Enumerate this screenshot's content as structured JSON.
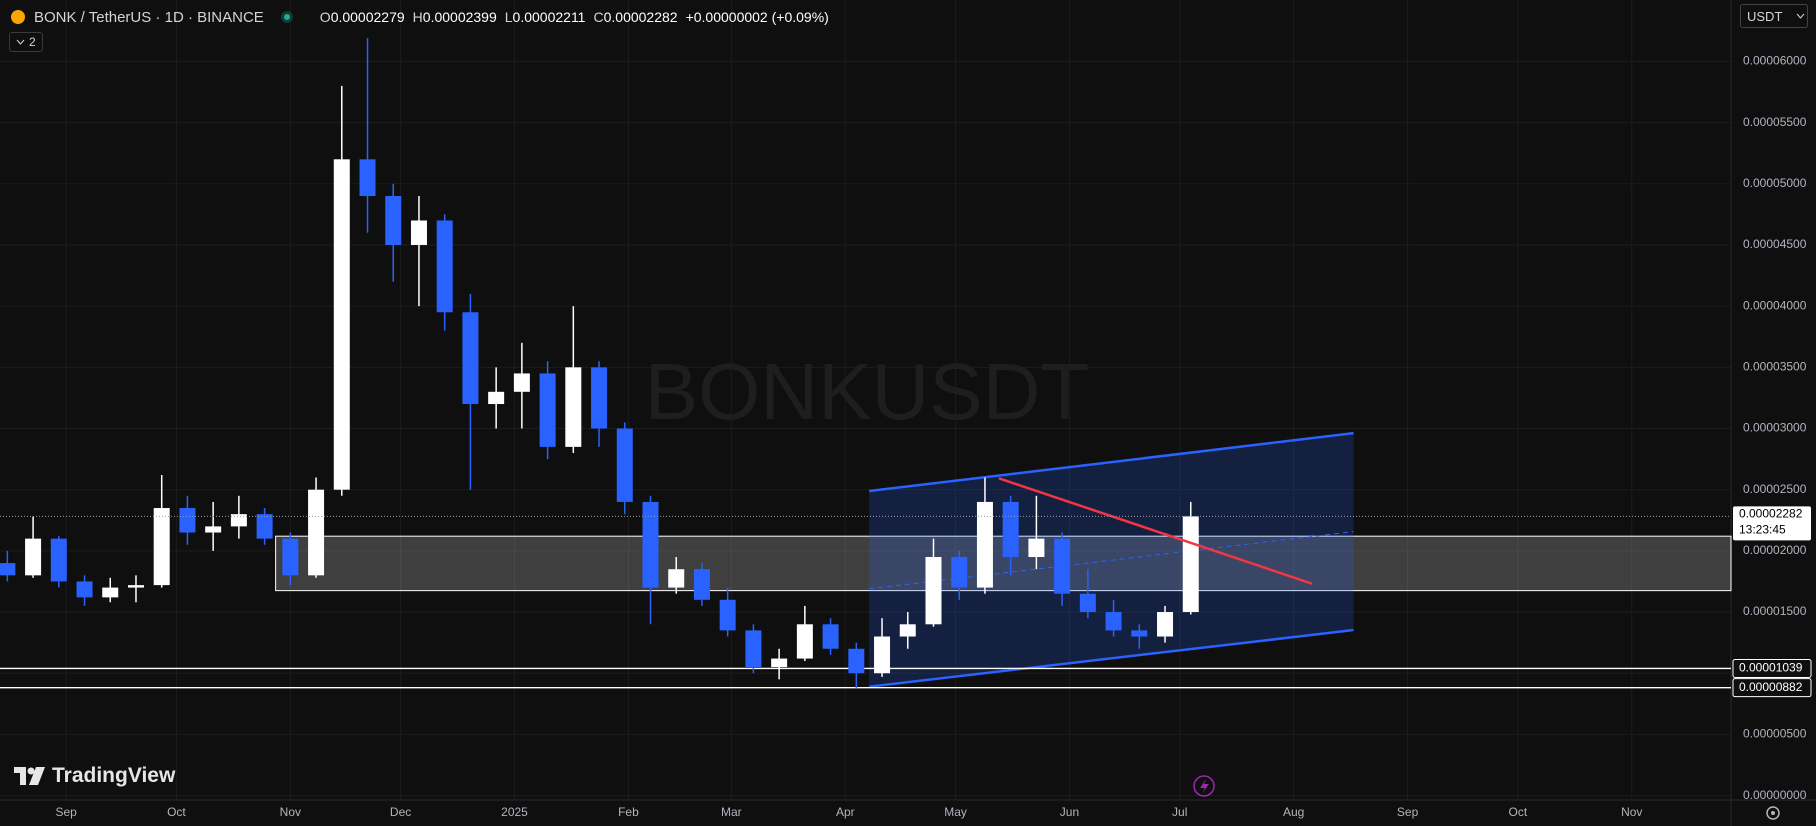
{
  "chart_data": {
    "type": "candlestick",
    "title": "BONK / TetherUS · 1D · BINANCE",
    "ohlc": [
      {
        "label": "O",
        "value": "0.00002279"
      },
      {
        "label": "H",
        "value": "0.00002399"
      },
      {
        "label": "L",
        "value": "0.00002211"
      },
      {
        "label": "C",
        "value": "0.00002282"
      }
    ],
    "change": "+0.00000002 (+0.09%)",
    "indicator_count": "2",
    "currency": "USDT",
    "watermark": "BONKUSDT",
    "brand": "TradingView",
    "up_color": "#ffffff",
    "down_color": "#2962ff",
    "grid": true,
    "xlim": [
      -18,
      453
    ],
    "ylim": [
      -3.6e-07,
      6.502e-05
    ],
    "xticks": [
      {
        "value": 0,
        "label": "Sep"
      },
      {
        "value": 30,
        "label": "Oct"
      },
      {
        "value": 61,
        "label": "Nov"
      },
      {
        "value": 91,
        "label": "Dec"
      },
      {
        "value": 122,
        "label": "2025"
      },
      {
        "value": 153,
        "label": "Feb"
      },
      {
        "value": 181,
        "label": "Mar"
      },
      {
        "value": 212,
        "label": "Apr"
      },
      {
        "value": 242,
        "label": "May"
      },
      {
        "value": 273,
        "label": "Jun"
      },
      {
        "value": 303,
        "label": "Jul"
      },
      {
        "value": 334,
        "label": "Aug"
      },
      {
        "value": 365,
        "label": "Sep"
      },
      {
        "value": 395,
        "label": "Oct"
      },
      {
        "value": 426,
        "label": "Nov"
      }
    ],
    "yticks": [
      {
        "value": 0,
        "label": "0.00000000"
      },
      {
        "value": 5e-06,
        "label": "0.00000500"
      },
      {
        "value": 1e-05,
        "label": "0.00001000"
      },
      {
        "value": 1.5e-05,
        "label": "0.00001500"
      },
      {
        "value": 2e-05,
        "label": "0.00002000"
      },
      {
        "value": 2.5e-05,
        "label": "0.00002500"
      },
      {
        "value": 3e-05,
        "label": "0.00003000"
      },
      {
        "value": 3.5e-05,
        "label": "0.00003500"
      },
      {
        "value": 4e-05,
        "label": "0.00004000"
      },
      {
        "value": 4.5e-05,
        "label": "0.00004500"
      },
      {
        "value": 5e-05,
        "label": "0.00005000"
      },
      {
        "value": 5.5e-05,
        "label": "0.00005500"
      },
      {
        "value": 6e-05,
        "label": "0.00006000"
      }
    ],
    "candles": [
      {
        "x": -16,
        "open": 1.9e-05,
        "high": 2e-05,
        "low": 1.75e-05,
        "close": 1.8e-05
      },
      {
        "x": -9,
        "open": 1.8e-05,
        "high": 2.28e-05,
        "low": 1.78e-05,
        "close": 2.1e-05
      },
      {
        "x": -2,
        "open": 2.1e-05,
        "high": 2.12e-05,
        "low": 1.7e-05,
        "close": 1.75e-05
      },
      {
        "x": 5,
        "open": 1.75e-05,
        "high": 1.8e-05,
        "low": 1.55e-05,
        "close": 1.62e-05
      },
      {
        "x": 12,
        "open": 1.62e-05,
        "high": 1.78e-05,
        "low": 1.58e-05,
        "close": 1.7e-05
      },
      {
        "x": 19,
        "open": 1.7e-05,
        "high": 1.8e-05,
        "low": 1.58e-05,
        "close": 1.72e-05
      },
      {
        "x": 26,
        "open": 1.72e-05,
        "high": 2.62e-05,
        "low": 1.7e-05,
        "close": 2.35e-05
      },
      {
        "x": 33,
        "open": 2.35e-05,
        "high": 2.45e-05,
        "low": 2.05e-05,
        "close": 2.15e-05
      },
      {
        "x": 40,
        "open": 2.15e-05,
        "high": 2.4e-05,
        "low": 2e-05,
        "close": 2.2e-05
      },
      {
        "x": 47,
        "open": 2.2e-05,
        "high": 2.45e-05,
        "low": 2.1e-05,
        "close": 2.3e-05
      },
      {
        "x": 54,
        "open": 2.3e-05,
        "high": 2.35e-05,
        "low": 2.05e-05,
        "close": 2.1e-05
      },
      {
        "x": 61,
        "open": 2.1e-05,
        "high": 2.15e-05,
        "low": 1.72e-05,
        "close": 1.8e-05
      },
      {
        "x": 68,
        "open": 1.8e-05,
        "high": 2.6e-05,
        "low": 1.78e-05,
        "close": 2.5e-05
      },
      {
        "x": 75,
        "open": 2.5e-05,
        "high": 5.8e-05,
        "low": 2.45e-05,
        "close": 5.2e-05
      },
      {
        "x": 82,
        "open": 5.2e-05,
        "high": 6.19e-05,
        "low": 4.6e-05,
        "close": 4.9e-05
      },
      {
        "x": 89,
        "open": 4.9e-05,
        "high": 5e-05,
        "low": 4.2e-05,
        "close": 4.5e-05
      },
      {
        "x": 96,
        "open": 4.5e-05,
        "high": 4.9e-05,
        "low": 4e-05,
        "close": 4.7e-05
      },
      {
        "x": 103,
        "open": 4.7e-05,
        "high": 4.75e-05,
        "low": 3.8e-05,
        "close": 3.95e-05
      },
      {
        "x": 110,
        "open": 3.95e-05,
        "high": 4.1e-05,
        "low": 2.5e-05,
        "close": 3.2e-05
      },
      {
        "x": 117,
        "open": 3.2e-05,
        "high": 3.5e-05,
        "low": 3e-05,
        "close": 3.3e-05
      },
      {
        "x": 124,
        "open": 3.3e-05,
        "high": 3.7e-05,
        "low": 3e-05,
        "close": 3.45e-05
      },
      {
        "x": 131,
        "open": 3.45e-05,
        "high": 3.55e-05,
        "low": 2.75e-05,
        "close": 2.85e-05
      },
      {
        "x": 138,
        "open": 2.85e-05,
        "high": 4e-05,
        "low": 2.8e-05,
        "close": 3.5e-05
      },
      {
        "x": 145,
        "open": 3.5e-05,
        "high": 3.55e-05,
        "low": 2.85e-05,
        "close": 3e-05
      },
      {
        "x": 152,
        "open": 3e-05,
        "high": 3.05e-05,
        "low": 2.3e-05,
        "close": 2.4e-05
      },
      {
        "x": 159,
        "open": 2.4e-05,
        "high": 2.45e-05,
        "low": 1.4e-05,
        "close": 1.7e-05
      },
      {
        "x": 166,
        "open": 1.7e-05,
        "high": 1.95e-05,
        "low": 1.65e-05,
        "close": 1.85e-05
      },
      {
        "x": 173,
        "open": 1.85e-05,
        "high": 1.9e-05,
        "low": 1.55e-05,
        "close": 1.6e-05
      },
      {
        "x": 180,
        "open": 1.6e-05,
        "high": 1.7e-05,
        "low": 1.3e-05,
        "close": 1.35e-05
      },
      {
        "x": 187,
        "open": 1.35e-05,
        "high": 1.4e-05,
        "low": 1e-05,
        "close": 1.05e-05
      },
      {
        "x": 194,
        "open": 1.05e-05,
        "high": 1.2e-05,
        "low": 9.5e-06,
        "close": 1.12e-05
      },
      {
        "x": 201,
        "open": 1.12e-05,
        "high": 1.55e-05,
        "low": 1.1e-05,
        "close": 1.4e-05
      },
      {
        "x": 208,
        "open": 1.4e-05,
        "high": 1.45e-05,
        "low": 1.15e-05,
        "close": 1.2e-05
      },
      {
        "x": 215,
        "open": 1.2e-05,
        "high": 1.25e-05,
        "low": 8.8e-06,
        "close": 1e-05
      },
      {
        "x": 222,
        "open": 1e-05,
        "high": 1.45e-05,
        "low": 9.7e-06,
        "close": 1.3e-05
      },
      {
        "x": 229,
        "open": 1.3e-05,
        "high": 1.5e-05,
        "low": 1.2e-05,
        "close": 1.4e-05
      },
      {
        "x": 236,
        "open": 1.4e-05,
        "high": 2.1e-05,
        "low": 1.38e-05,
        "close": 1.95e-05
      },
      {
        "x": 243,
        "open": 1.95e-05,
        "high": 2e-05,
        "low": 1.6e-05,
        "close": 1.7e-05
      },
      {
        "x": 250,
        "open": 1.7e-05,
        "high": 2.6e-05,
        "low": 1.65e-05,
        "close": 2.4e-05
      },
      {
        "x": 257,
        "open": 2.4e-05,
        "high": 2.45e-05,
        "low": 1.8e-05,
        "close": 1.95e-05
      },
      {
        "x": 264,
        "open": 1.95e-05,
        "high": 2.45e-05,
        "low": 1.85e-05,
        "close": 2.1e-05
      },
      {
        "x": 271,
        "open": 2.1e-05,
        "high": 2.15e-05,
        "low": 1.55e-05,
        "close": 1.65e-05
      },
      {
        "x": 278,
        "open": 1.65e-05,
        "high": 1.85e-05,
        "low": 1.45e-05,
        "close": 1.5e-05
      },
      {
        "x": 285,
        "open": 1.5e-05,
        "high": 1.6e-05,
        "low": 1.3e-05,
        "close": 1.35e-05
      },
      {
        "x": 292,
        "open": 1.35e-05,
        "high": 1.4e-05,
        "low": 1.2e-05,
        "close": 1.3e-05
      },
      {
        "x": 299,
        "open": 1.3e-05,
        "high": 1.55e-05,
        "low": 1.25e-05,
        "close": 1.5e-05
      },
      {
        "x": 306,
        "open": 1.5e-05,
        "high": 2.4e-05,
        "low": 1.48e-05,
        "close": 2.282e-05
      }
    ],
    "current_price": {
      "value": 2.282e-05,
      "label": "0.00002282"
    },
    "countdown": "13:23:45",
    "levels": [
      {
        "value": 1.039e-05,
        "label": "0.00001039"
      },
      {
        "value": 8.82e-06,
        "label": "0.00000882"
      }
    ],
    "zone": {
      "x": 57,
      "top": 2.12e-05,
      "bottom": 1.675e-05
    },
    "channel": {
      "x": [
        218.5,
        350.3
      ],
      "lower": [
        8.9e-06,
        1.353e-05
      ],
      "upper": [
        2.489e-05,
        2.962e-05
      ]
    },
    "trendline": {
      "x": [
        253.8,
        339
      ],
      "y": [
        2.593e-05,
        1.732e-05
      ]
    }
  }
}
